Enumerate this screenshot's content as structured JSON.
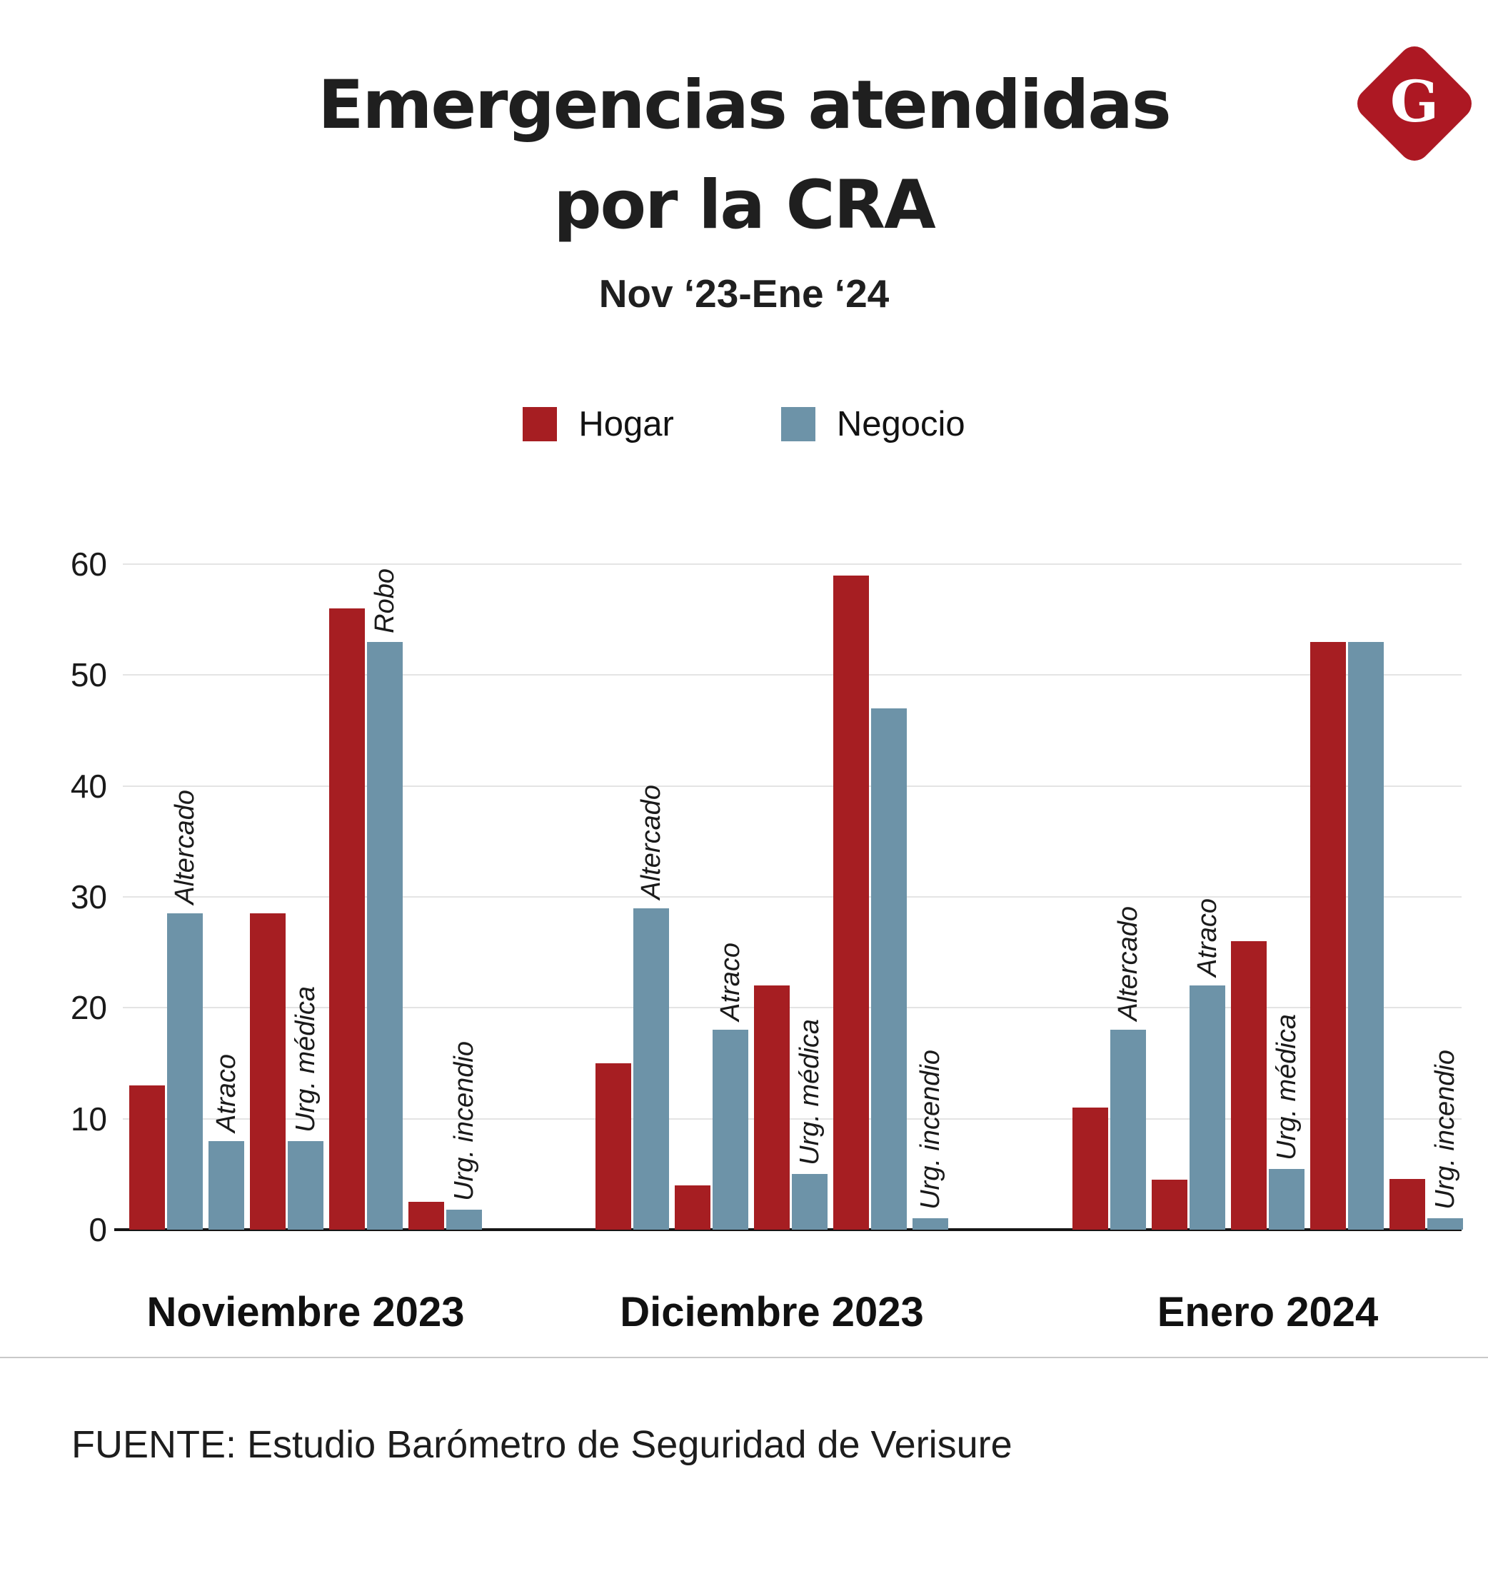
{
  "header": {
    "title_lines": [
      "Emergencias atendidas",
      "por la CRA"
    ],
    "subtitle": "Nov ‘23-Ene ‘24",
    "logo_letter": "G",
    "logo_color": "#AD1823"
  },
  "footer": {
    "source": "FUENTE: Estudio Barómetro de Seguridad de Verisure"
  },
  "chart_data": {
    "type": "bar",
    "title": "Emergencias atendidas por la CRA",
    "subtitle": "Nov ‘23-Ene ‘24",
    "xlabel": "",
    "ylabel": "",
    "ylim": [
      0,
      60
    ],
    "yticks": [
      0,
      10,
      20,
      30,
      40,
      50,
      60
    ],
    "grid": true,
    "legend_position": "top",
    "series_colors": {
      "hogar": "#A61E22",
      "negocio": "#6D93A8"
    },
    "legend": [
      {
        "name": "Hogar",
        "key": "hogar"
      },
      {
        "name": "Negocio",
        "key": "negocio"
      }
    ],
    "categories": [
      "Altercado",
      "Atraco",
      "Urg. médica",
      "Robo",
      "Urg. incendio"
    ],
    "groups": [
      {
        "label": "Noviembre 2023",
        "values": [
          {
            "category": "Altercado",
            "hogar": 13,
            "negocio": 28.5,
            "label_shown": true
          },
          {
            "category": "Atraco",
            "hogar": 0,
            "negocio": 8,
            "label_shown": true
          },
          {
            "category": "Urg. médica",
            "hogar": 28.5,
            "negocio": 8,
            "label_shown": true
          },
          {
            "category": "Robo",
            "hogar": 56,
            "negocio": 53,
            "label_shown": true
          },
          {
            "category": "Urg. incendio",
            "hogar": 2.5,
            "negocio": 1.8,
            "label_shown": true
          }
        ]
      },
      {
        "label": "Diciembre 2023",
        "values": [
          {
            "category": "Altercado",
            "hogar": 15,
            "negocio": 29,
            "label_shown": true
          },
          {
            "category": "Atraco",
            "hogar": 4,
            "negocio": 18,
            "label_shown": true
          },
          {
            "category": "Urg. médica",
            "hogar": 22,
            "negocio": 5,
            "label_shown": true
          },
          {
            "category": "Robo",
            "hogar": 59,
            "negocio": 47,
            "label_shown": false
          },
          {
            "category": "Urg. incendio",
            "hogar": 0,
            "negocio": 1,
            "label_shown": true
          }
        ]
      },
      {
        "label": "Enero 2024",
        "values": [
          {
            "category": "Altercado",
            "hogar": 11,
            "negocio": 18,
            "label_shown": true
          },
          {
            "category": "Atraco",
            "hogar": 4.5,
            "negocio": 22,
            "label_shown": true
          },
          {
            "category": "Urg. médica",
            "hogar": 26,
            "negocio": 5.5,
            "label_shown": true
          },
          {
            "category": "Robo",
            "hogar": 53,
            "negocio": 53,
            "label_shown": false
          },
          {
            "category": "Urg. incendio",
            "hogar": 4.6,
            "negocio": 1,
            "label_shown": true
          }
        ]
      }
    ]
  }
}
